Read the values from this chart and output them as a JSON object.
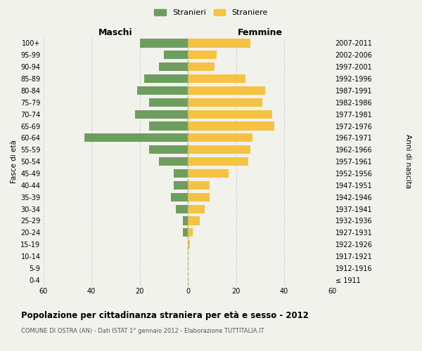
{
  "age_groups": [
    "0-4",
    "5-9",
    "10-14",
    "15-19",
    "20-24",
    "25-29",
    "30-34",
    "35-39",
    "40-44",
    "45-49",
    "50-54",
    "55-59",
    "60-64",
    "65-69",
    "70-74",
    "75-79",
    "80-84",
    "85-89",
    "90-94",
    "95-99",
    "100+"
  ],
  "birth_years": [
    "2007-2011",
    "2002-2006",
    "1997-2001",
    "1992-1996",
    "1987-1991",
    "1982-1986",
    "1977-1981",
    "1972-1976",
    "1967-1971",
    "1962-1966",
    "1957-1961",
    "1952-1956",
    "1947-1951",
    "1942-1946",
    "1937-1941",
    "1932-1936",
    "1927-1931",
    "1922-1926",
    "1917-1921",
    "1912-1916",
    "≤ 1911"
  ],
  "maschi": [
    20,
    10,
    12,
    18,
    21,
    16,
    22,
    16,
    43,
    16,
    12,
    6,
    6,
    7,
    5,
    2,
    2,
    0,
    0,
    0,
    0
  ],
  "femmine": [
    26,
    12,
    11,
    24,
    32,
    31,
    35,
    36,
    27,
    26,
    25,
    17,
    9,
    9,
    7,
    5,
    2,
    1,
    0,
    0,
    0
  ],
  "male_color": "#6d9e5f",
  "female_color": "#f5c242",
  "background_color": "#f2f2ed",
  "grid_color": "#cccccc",
  "title": "Popolazione per cittadinanza straniera per età e sesso - 2012",
  "subtitle": "COMUNE DI OSTRA (AN) - Dati ISTAT 1° gennaio 2012 - Elaborazione TUTTITALIA.IT",
  "xlabel_left": "Maschi",
  "xlabel_right": "Femmine",
  "ylabel_left": "Fasce di età",
  "ylabel_right": "Anni di nascita",
  "legend_male": "Stranieri",
  "legend_female": "Straniere",
  "xlim": 60,
  "xticks": [
    -60,
    -40,
    -20,
    0,
    20,
    40,
    60
  ],
  "xtick_labels": [
    "60",
    "40",
    "20",
    "0",
    "20",
    "40",
    "60"
  ],
  "dashed_line_color": "#b8b870"
}
